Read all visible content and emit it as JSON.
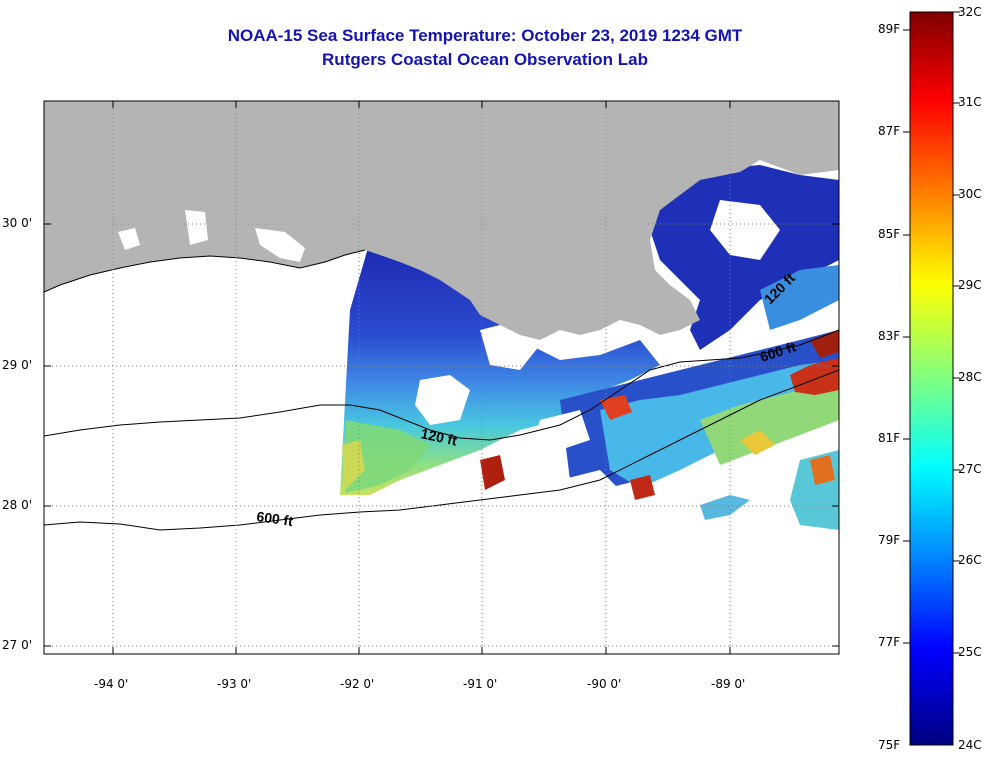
{
  "header": {
    "title_line1": "NOAA-15 Sea Surface Temperature:  October 23, 2019 1234 GMT",
    "title_line2": "Rutgers Coastal Ocean Observation Lab"
  },
  "map": {
    "lon_labels": [
      "-94 0'",
      "-93 0'",
      "-92 0'",
      "-91 0'",
      "-90 0'",
      "-89 0'"
    ],
    "lat_labels": [
      "30 0'",
      "29 0'",
      "28 0'",
      "27 0'"
    ],
    "contour_labels": [
      "120 ft",
      "600 ft",
      "600 ft",
      "120 ft"
    ],
    "colors": {
      "land": "#b4b4b4",
      "ocean_nodata": "#ffffff",
      "contour": "#000000"
    }
  },
  "colorbar": {
    "fahrenheit_labels": [
      "89F",
      "87F",
      "85F",
      "83F",
      "81F",
      "79F",
      "77F",
      "75F"
    ],
    "celsius_labels": [
      "32C",
      "31C",
      "30C",
      "29C",
      "28C",
      "27C",
      "26C",
      "25C",
      "24C"
    ],
    "gradient_colors": [
      "#800000",
      "#ff0000",
      "#ff8000",
      "#ffff00",
      "#80ff80",
      "#00ffff",
      "#0080ff",
      "#0000ff",
      "#000080"
    ]
  }
}
